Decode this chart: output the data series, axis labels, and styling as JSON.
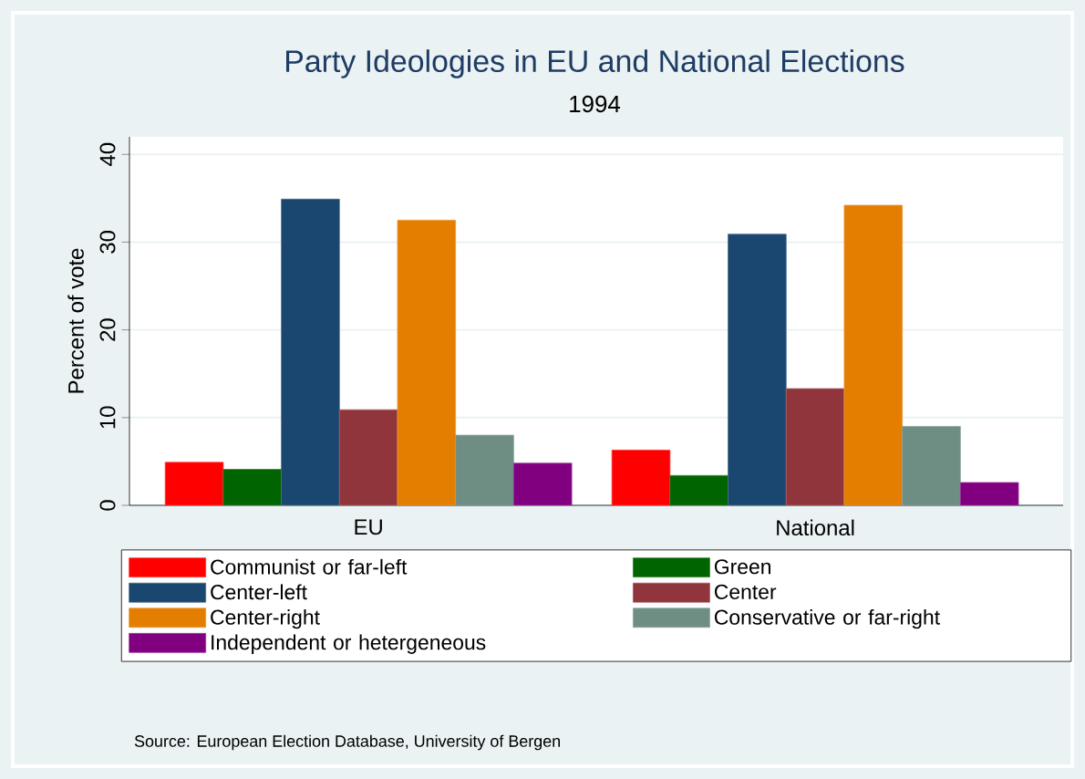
{
  "chart_data": {
    "type": "bar",
    "title": "Party Ideologies in EU and National Elections",
    "subtitle": "1994",
    "ylabel": "Percent of vote",
    "categories": [
      "EU",
      "National"
    ],
    "series": [
      {
        "name": "Communist or far-left",
        "color": "#ff0000",
        "values": [
          4.9,
          6.3
        ]
      },
      {
        "name": "Green",
        "color": "#006400",
        "values": [
          4.1,
          3.4
        ]
      },
      {
        "name": "Center-left",
        "color": "#1a476f",
        "values": [
          34.9,
          30.9
        ]
      },
      {
        "name": "Center",
        "color": "#90353b",
        "values": [
          10.9,
          13.3
        ]
      },
      {
        "name": "Center-right",
        "color": "#e37e00",
        "values": [
          32.5,
          34.2
        ]
      },
      {
        "name": "Conservative or far-right",
        "color": "#6e8e84",
        "values": [
          8.0,
          9.0
        ]
      },
      {
        "name": "Independent or hetergeneous",
        "color": "#800080",
        "values": [
          4.8,
          2.6
        ]
      }
    ],
    "ylim": [
      0,
      42
    ],
    "yticks": [
      0,
      10,
      20,
      30,
      40
    ],
    "grid": "y",
    "legend": "bottom",
    "annotations": [
      "Source: European Election Database, University of Bergen"
    ]
  }
}
